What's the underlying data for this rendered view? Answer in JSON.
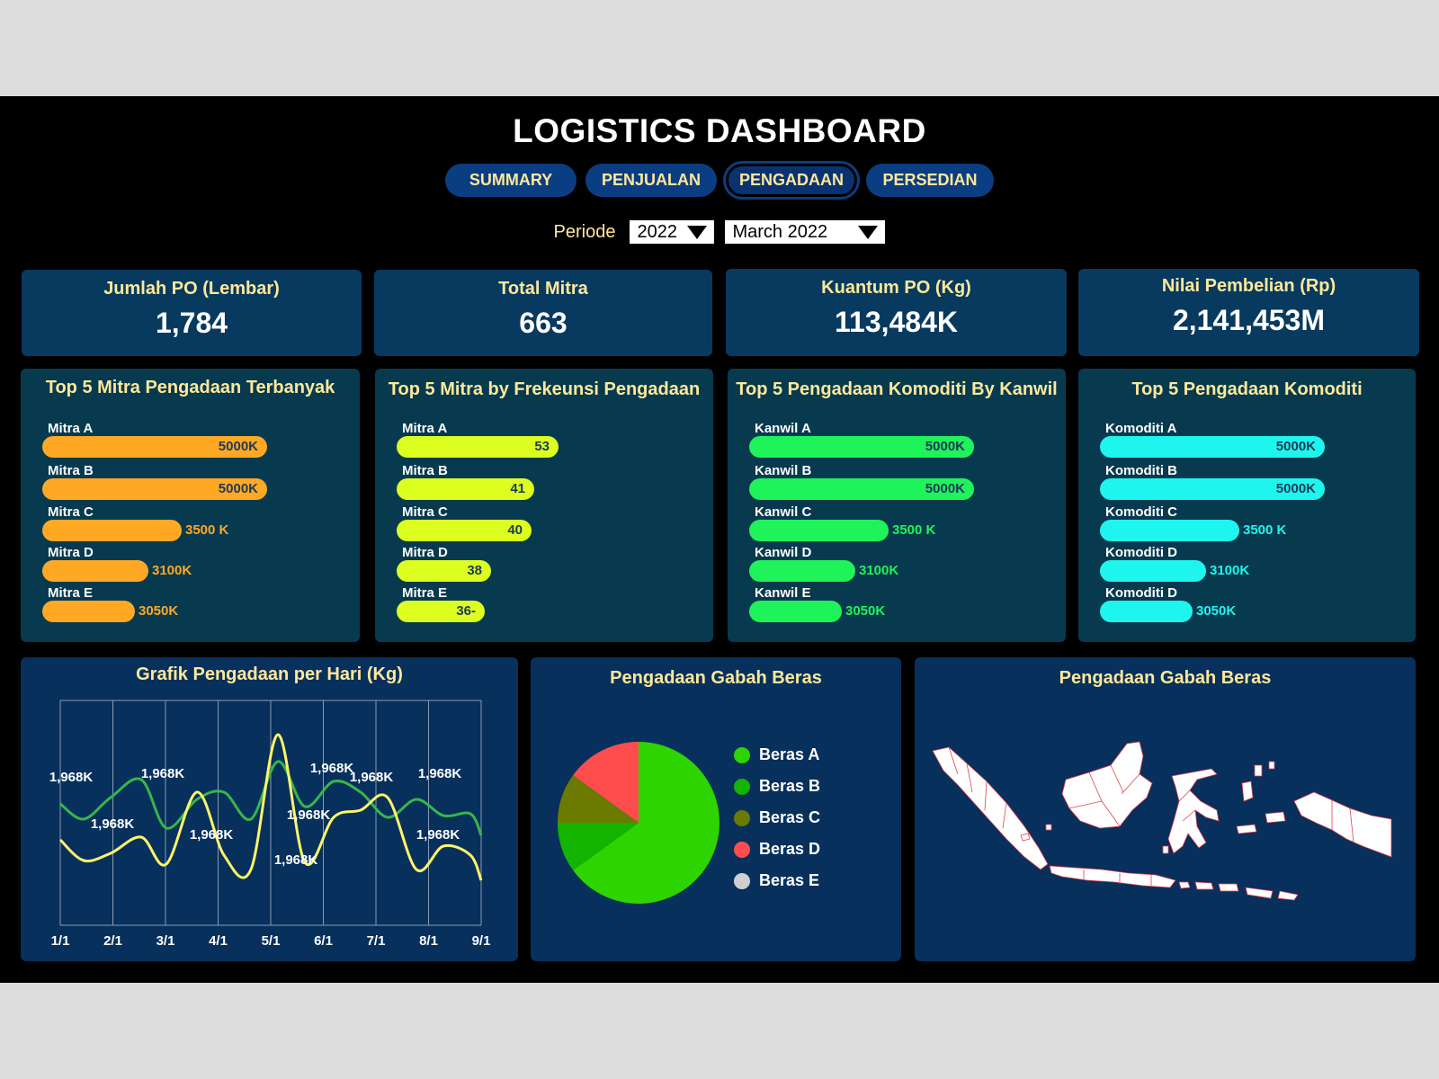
{
  "header": {
    "title": "LOGISTICS DASHBOARD"
  },
  "tabs": [
    {
      "label": "SUMMARY",
      "active": false
    },
    {
      "label": "PENJUALAN",
      "active": false
    },
    {
      "label": "PENGADAAN",
      "active": true
    },
    {
      "label": "PERSEDIAN",
      "active": false
    }
  ],
  "periode": {
    "label": "Periode",
    "year": "2022",
    "month": "March 2022"
  },
  "kpis": [
    {
      "label": "Jumlah PO (Lembar)",
      "value": "1,784"
    },
    {
      "label": "Total Mitra",
      "value": "663"
    },
    {
      "label": "Kuantum PO (Kg)",
      "value": "113,484K"
    },
    {
      "label": "Nilai Pembelian (Rp)",
      "value": "2,141,453M"
    }
  ],
  "panels": [
    {
      "title": "Top 5 Mitra Pengadaan Terbanyak",
      "color": "#ffa824",
      "value_color": "#ffa824",
      "rows": [
        {
          "name": "Mitra A",
          "value": "5000K",
          "level": 1.0,
          "inside": true
        },
        {
          "name": "Mitra B",
          "value": "5000K",
          "level": 1.0,
          "inside": true
        },
        {
          "name": "Mitra C",
          "value": "3500 K",
          "level": 0.62,
          "inside": false
        },
        {
          "name": "Mitra D",
          "value": "3100K",
          "level": 0.47,
          "inside": false
        },
        {
          "name": "Mitra E",
          "value": "3050K",
          "level": 0.41,
          "inside": false
        }
      ]
    },
    {
      "title": "Top 5 Mitra by Frekeunsi Pengadaan",
      "color": "#dcff20",
      "value_color": "#dcff20",
      "rows": [
        {
          "name": "Mitra A",
          "value": "53",
          "level": 0.72,
          "inside": true
        },
        {
          "name": "Mitra B",
          "value": "41",
          "level": 0.61,
          "inside": true
        },
        {
          "name": "Mitra C",
          "value": "40",
          "level": 0.6,
          "inside": true
        },
        {
          "name": "Mitra D",
          "value": "38",
          "level": 0.42,
          "inside": true
        },
        {
          "name": "Mitra E",
          "value": "36-",
          "level": 0.39,
          "inside": true
        }
      ]
    },
    {
      "title": "Top 5 Pengadaan Komoditi By Kanwil",
      "color": "#1ef35a",
      "value_color": "#1ef35a",
      "rows": [
        {
          "name": "Kanwil A",
          "value": "5000K",
          "level": 1.0,
          "inside": true
        },
        {
          "name": "Kanwil B",
          "value": "5000K",
          "level": 1.0,
          "inside": true
        },
        {
          "name": "Kanwil C",
          "value": "3500 K",
          "level": 0.62,
          "inside": false
        },
        {
          "name": "Kanwil D",
          "value": "3100K",
          "level": 0.47,
          "inside": false
        },
        {
          "name": "Kanwil E",
          "value": "3050K",
          "level": 0.41,
          "inside": false
        }
      ]
    },
    {
      "title": "Top 5 Pengadaan Komoditi",
      "color": "#1ef5ee",
      "value_color": "#1ef5ee",
      "rows": [
        {
          "name": "Komoditi A",
          "value": "5000K",
          "level": 1.0,
          "inside": true
        },
        {
          "name": "Komoditi B",
          "value": "5000K",
          "level": 1.0,
          "inside": true
        },
        {
          "name": "Komoditi C",
          "value": "3500 K",
          "level": 0.62,
          "inside": false
        },
        {
          "name": "Komoditi D",
          "value": "3100K",
          "level": 0.47,
          "inside": false
        },
        {
          "name": "Komoditi D",
          "value": "3050K",
          "level": 0.41,
          "inside": false
        }
      ]
    }
  ],
  "line_chart": {
    "title": "Grafik Pengadaan per Hari (Kg)",
    "x_labels": [
      "1/1",
      "2/1",
      "3/1",
      "4/1",
      "5/1",
      "6/1",
      "7/1",
      "8/1",
      "9/1"
    ],
    "data_label": "1,968K",
    "series_colors": [
      "#39b54a",
      "#fff568"
    ]
  },
  "pie_chart": {
    "title": "Pengadaan Gabah Beras",
    "slices": [
      {
        "name": "Beras A",
        "value": 65,
        "color": "#2dd400"
      },
      {
        "name": "Beras B",
        "value": 10,
        "color": "#12b400"
      },
      {
        "name": "Beras C",
        "value": 10,
        "color": "#6b7a00"
      },
      {
        "name": "Beras D",
        "value": 15,
        "color": "#ff4d4d"
      },
      {
        "name": "Beras E",
        "value": 0,
        "color": "#cfcfcf"
      }
    ]
  },
  "map": {
    "title": "Pengadaan Gabah Beras"
  }
}
